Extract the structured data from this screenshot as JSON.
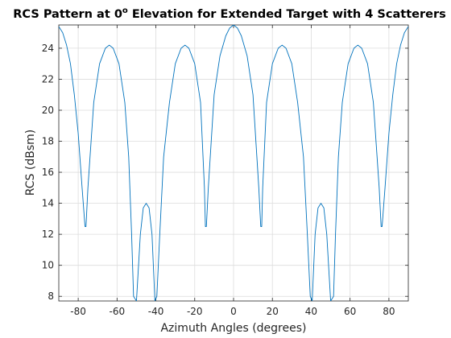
{
  "chart_data": {
    "type": "line",
    "title_main": "RCS Pattern at 0",
    "title_sup": "o",
    "title_rest": " Elevation for Extended Target with 4 Scatterers",
    "xlabel": "Azimuth Angles (degrees)",
    "ylabel": "RCS (dBsm)",
    "xlim": [
      -90,
      90
    ],
    "ylim": [
      7.7,
      25.5
    ],
    "xticks": [
      -80,
      -60,
      -40,
      -20,
      0,
      20,
      40,
      60,
      80
    ],
    "yticks": [
      8,
      10,
      12,
      14,
      16,
      18,
      20,
      22,
      24
    ],
    "xtick_labels": [
      "-80",
      "-60",
      "-40",
      "-20",
      "0",
      "20",
      "40",
      "60",
      "80"
    ],
    "ytick_labels": [
      "8",
      "10",
      "12",
      "14",
      "16",
      "18",
      "20",
      "22",
      "24"
    ],
    "grid": true,
    "series": [
      {
        "color": "#0072BD",
        "peak_dbsm": 25.5,
        "secondary_peak_dbsm": 24.2,
        "x": [
          -90,
          -88,
          -86,
          -84,
          -82,
          -80,
          -78,
          -76.5,
          -76,
          -75,
          -72,
          -69,
          -66,
          -64,
          -62,
          -59,
          -56,
          -54,
          -52.5,
          -51.5,
          -50,
          -48,
          -46.5,
          -45,
          -43.5,
          -42,
          -40.5,
          -39.5,
          -38,
          -36,
          -33,
          -30,
          -27,
          -25,
          -23,
          -20,
          -17,
          -15,
          -14.5,
          -14,
          -13,
          -10,
          -7,
          -4,
          -2,
          0,
          2,
          4,
          7,
          10,
          13,
          14,
          14.5,
          15,
          17,
          20,
          23,
          25,
          27,
          30,
          33,
          36,
          38,
          39.5,
          40.5,
          42,
          43.5,
          45,
          46.5,
          48,
          50,
          51.5,
          52.5,
          54,
          56,
          59,
          62,
          64,
          66,
          69,
          72,
          75,
          76,
          76.5,
          78,
          80,
          82,
          84,
          86,
          88,
          90
        ],
        "y": [
          25.4,
          25.0,
          24.2,
          23.0,
          21.0,
          18.5,
          15.0,
          12.5,
          12.5,
          15.0,
          20.5,
          23.0,
          24.0,
          24.2,
          24.0,
          23.0,
          20.5,
          17.0,
          12.0,
          8.0,
          7.7,
          12.0,
          13.7,
          14.0,
          13.7,
          12.0,
          7.7,
          8.0,
          12.0,
          17.0,
          20.5,
          23.0,
          24.0,
          24.2,
          24.0,
          23.0,
          20.5,
          15.0,
          12.5,
          12.5,
          15.0,
          21.0,
          23.5,
          24.8,
          25.3,
          25.5,
          25.3,
          24.8,
          23.5,
          21.0,
          15.0,
          12.5,
          12.5,
          15.0,
          20.5,
          23.0,
          24.0,
          24.2,
          24.0,
          23.0,
          20.5,
          17.0,
          12.0,
          8.0,
          7.7,
          12.0,
          13.7,
          14.0,
          13.7,
          12.0,
          7.7,
          8.0,
          12.0,
          17.0,
          20.5,
          23.0,
          24.0,
          24.2,
          24.0,
          23.0,
          20.5,
          15.0,
          12.5,
          12.5,
          15.0,
          18.5,
          21.0,
          23.0,
          24.2,
          25.0,
          25.4
        ]
      }
    ]
  }
}
